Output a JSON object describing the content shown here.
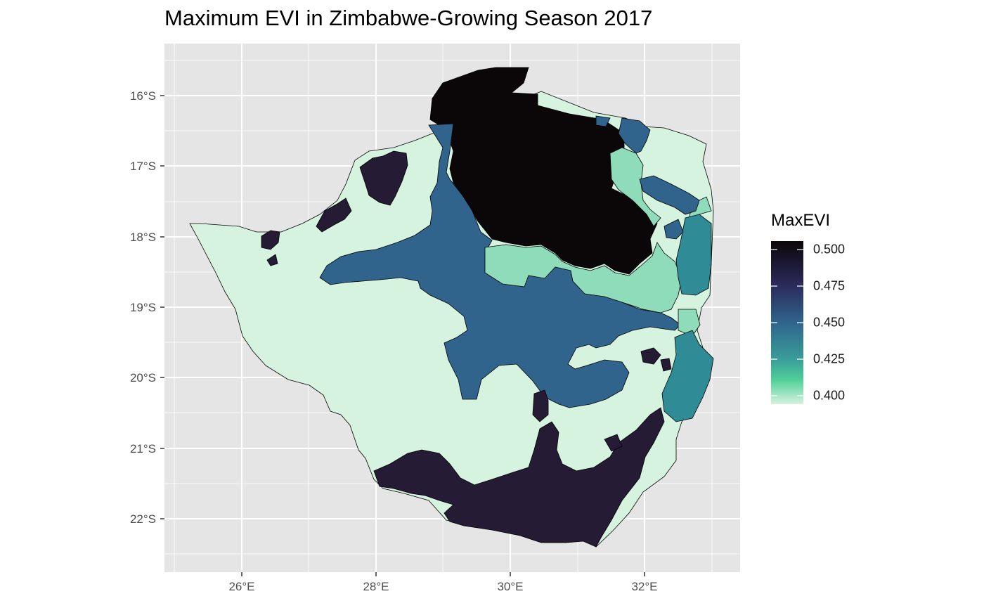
{
  "title": "Maximum EVI in Zimbabwe-Growing Season 2017",
  "axes": {
    "x_ticks": [
      "26°E",
      "28°E",
      "30°E",
      "32°E"
    ],
    "y_ticks": [
      "16°S",
      "17°S",
      "18°S",
      "19°S",
      "20°S",
      "21°S",
      "22°S"
    ]
  },
  "legend": {
    "title": "MaxEVI",
    "labels": [
      "0.500",
      "0.475",
      "0.450",
      "0.425",
      "0.400"
    ],
    "values": [
      0.5,
      0.475,
      0.45,
      0.425,
      0.4
    ]
  },
  "colors": {
    "panel_background": "#e5e5e5",
    "grid": "#ffffff",
    "scale_high": "#0b0708",
    "scale_0475": "#2c2a5c",
    "scale_045": "#30648c",
    "scale_0425": "#2f8c96",
    "scale_low": "#d6f3e0",
    "region_mid_light": "#8fdcbb"
  },
  "chart_data": {
    "type": "choropleth",
    "title": "Maximum EVI in Zimbabwe-Growing Season 2017",
    "legend_title": "MaxEVI",
    "color_scale_range": [
      0.4,
      0.5
    ],
    "x_range": [
      25.0,
      33.5
    ],
    "y_range": [
      -22.8,
      -15.3
    ]
  }
}
